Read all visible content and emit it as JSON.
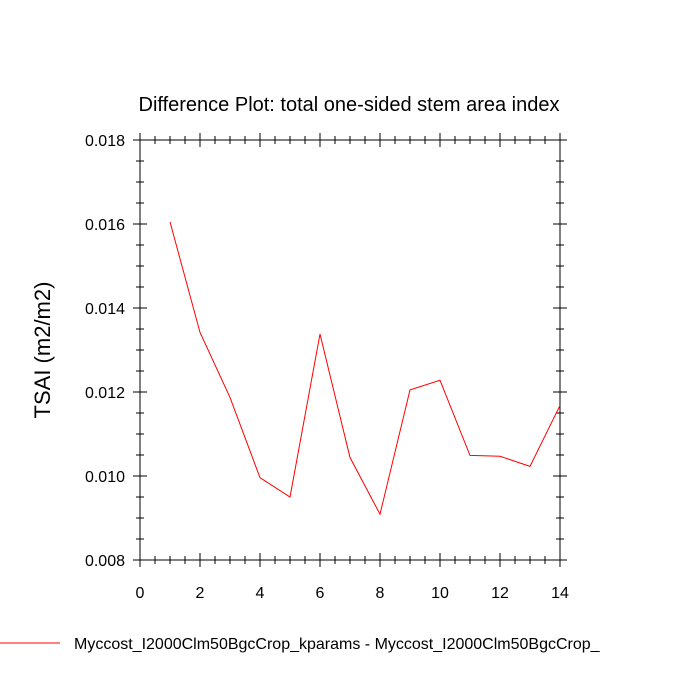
{
  "chart_data": {
    "type": "line",
    "title": "Difference Plot: total one-sided stem area index",
    "ylabel": "TSAI  (m2/m2)",
    "xlabel": "",
    "xlim": [
      0,
      14
    ],
    "ylim": [
      0.008,
      0.018
    ],
    "x_ticks": [
      "0",
      "2",
      "4",
      "6",
      "8",
      "10",
      "12",
      "14"
    ],
    "y_ticks": [
      "0.008",
      "0.010",
      "0.012",
      "0.014",
      "0.016",
      "0.018"
    ],
    "grid": false,
    "legend_position": "bottom",
    "series": [
      {
        "name": "Myccost_I2000Clm50BgcCrop_kparams - Myccost_I2000Clm50BgcCrop_",
        "color": "#ff0000",
        "x": [
          1,
          2,
          3,
          4,
          5,
          6,
          7,
          8,
          9,
          10,
          11,
          12,
          13,
          14
        ],
        "values": [
          0.01605,
          0.01342,
          0.01187,
          0.00996,
          0.0095,
          0.01338,
          0.01044,
          0.00909,
          0.01205,
          0.01228,
          0.01049,
          0.01047,
          0.01023,
          0.01168
        ]
      }
    ]
  }
}
